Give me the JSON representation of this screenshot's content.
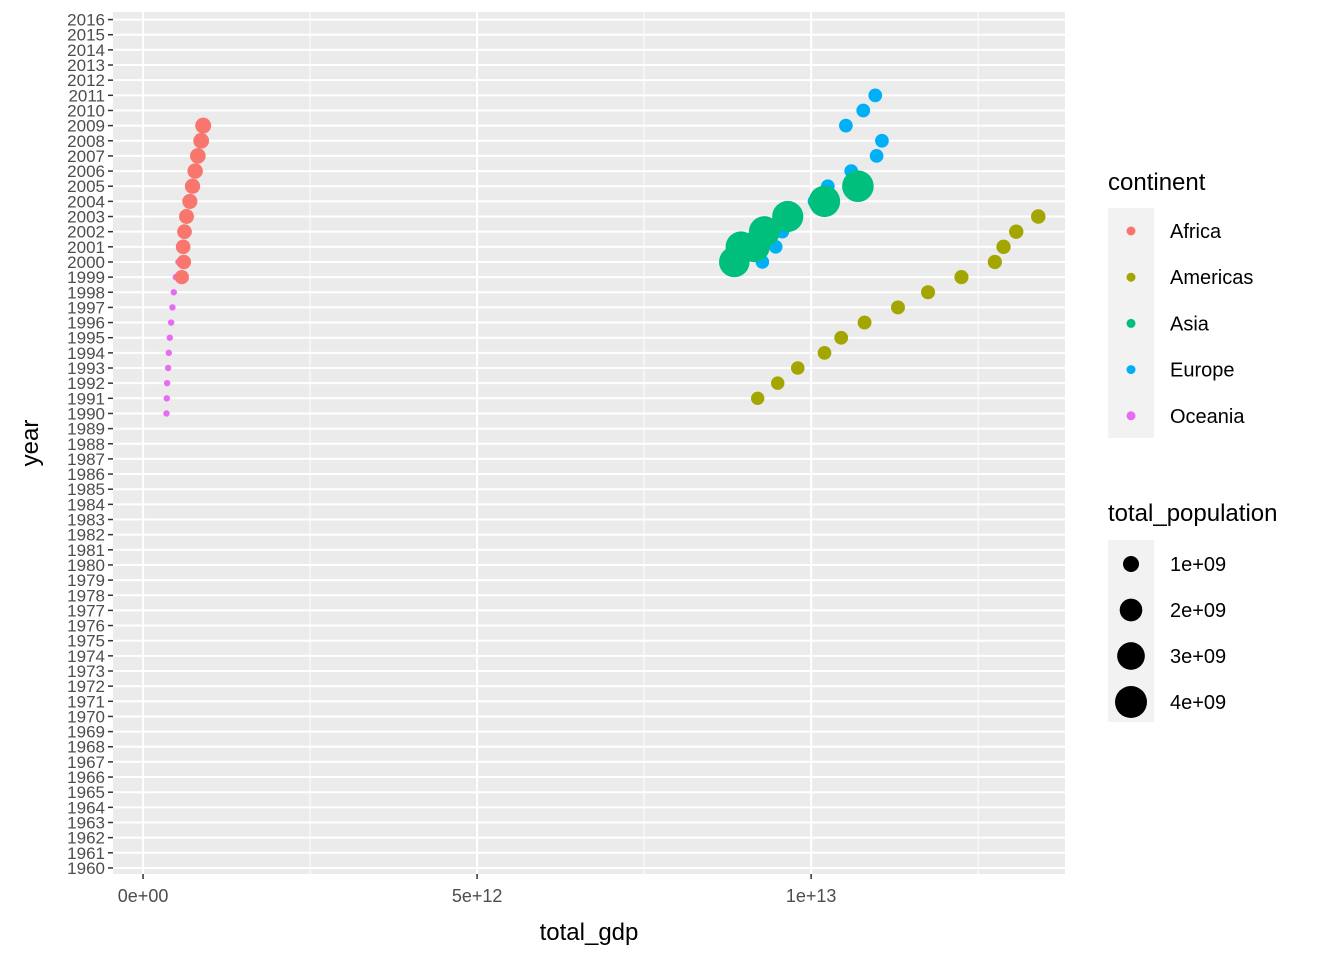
{
  "chart_data": {
    "type": "scatter",
    "xlabel": "total_gdp",
    "ylabel": "year",
    "x_tick_labels": [
      "0e+00",
      "5e+12",
      "1e+13"
    ],
    "x_ticks": [
      0,
      5000000000000,
      10000000000000
    ],
    "xlim": [
      -450000000000,
      13800000000000
    ],
    "ylim": [
      1959.6,
      2016.5
    ],
    "y_ticks": [
      1960,
      1961,
      1962,
      1963,
      1964,
      1965,
      1966,
      1967,
      1968,
      1969,
      1970,
      1971,
      1972,
      1973,
      1974,
      1975,
      1976,
      1977,
      1978,
      1979,
      1980,
      1981,
      1982,
      1983,
      1984,
      1985,
      1986,
      1987,
      1988,
      1989,
      1990,
      1991,
      1992,
      1993,
      1994,
      1995,
      1996,
      1997,
      1998,
      1999,
      2000,
      2001,
      2002,
      2003,
      2004,
      2005,
      2006,
      2007,
      2008,
      2009,
      2010,
      2011,
      2012,
      2013,
      2014,
      2015,
      2016
    ],
    "grid": true,
    "legend_position": "right",
    "color_legend": {
      "title": "continent",
      "entries": [
        {
          "name": "Africa",
          "color": "#F8766D"
        },
        {
          "name": "Americas",
          "color": "#A3A500"
        },
        {
          "name": "Asia",
          "color": "#00BF7D"
        },
        {
          "name": "Europe",
          "color": "#00B0F6"
        },
        {
          "name": "Oceania",
          "color": "#E76BF3"
        }
      ]
    },
    "size_legend": {
      "title": "total_population",
      "entries": [
        {
          "label": "1e+09",
          "value": 1000000000
        },
        {
          "label": "2e+09",
          "value": 2000000000
        },
        {
          "label": "3e+09",
          "value": 3000000000
        },
        {
          "label": "4e+09",
          "value": 4000000000
        }
      ]
    },
    "series": [
      {
        "name": "Africa",
        "points": [
          {
            "x": 580000000000,
            "y": 1999,
            "size": 800000000
          },
          {
            "x": 610000000000,
            "y": 2000,
            "size": 820000000
          },
          {
            "x": 600000000000,
            "y": 2001,
            "size": 830000000
          },
          {
            "x": 620000000000,
            "y": 2002,
            "size": 850000000
          },
          {
            "x": 650000000000,
            "y": 2003,
            "size": 870000000
          },
          {
            "x": 700000000000,
            "y": 2004,
            "size": 890000000
          },
          {
            "x": 740000000000,
            "y": 2005,
            "size": 910000000
          },
          {
            "x": 780000000000,
            "y": 2006,
            "size": 930000000
          },
          {
            "x": 820000000000,
            "y": 2007,
            "size": 950000000
          },
          {
            "x": 870000000000,
            "y": 2008,
            "size": 970000000
          },
          {
            "x": 900000000000,
            "y": 2009,
            "size": 990000000
          }
        ]
      },
      {
        "name": "Americas",
        "points": [
          {
            "x": 9200000000000,
            "y": 1991,
            "size": 700000000
          },
          {
            "x": 9500000000000,
            "y": 1992,
            "size": 710000000
          },
          {
            "x": 9800000000000,
            "y": 1993,
            "size": 720000000
          },
          {
            "x": 10200000000000,
            "y": 1994,
            "size": 730000000
          },
          {
            "x": 10450000000000,
            "y": 1995,
            "size": 740000000
          },
          {
            "x": 10800000000000,
            "y": 1996,
            "size": 750000000
          },
          {
            "x": 11300000000000,
            "y": 1997,
            "size": 760000000
          },
          {
            "x": 11750000000000,
            "y": 1998,
            "size": 770000000
          },
          {
            "x": 12250000000000,
            "y": 1999,
            "size": 780000000
          },
          {
            "x": 12750000000000,
            "y": 2000,
            "size": 790000000
          },
          {
            "x": 12880000000000,
            "y": 2001,
            "size": 800000000
          },
          {
            "x": 13070000000000,
            "y": 2002,
            "size": 810000000
          },
          {
            "x": 13400000000000,
            "y": 2003,
            "size": 820000000
          }
        ]
      },
      {
        "name": "Asia",
        "points": [
          {
            "x": 8850000000000,
            "y": 2000,
            "size": 3650000000
          },
          {
            "x": 8950000000000,
            "y": 2001,
            "size": 3700000000
          },
          {
            "x": 9150000000000,
            "y": 2001,
            "size": 3700000000
          },
          {
            "x": 9300000000000,
            "y": 2002,
            "size": 3750000000
          },
          {
            "x": 9650000000000,
            "y": 2003,
            "size": 3800000000
          },
          {
            "x": 10200000000000,
            "y": 2004,
            "size": 3850000000
          },
          {
            "x": 10700000000000,
            "y": 2005,
            "size": 3900000000
          }
        ]
      },
      {
        "name": "Europe",
        "points": [
          {
            "x": 9270000000000,
            "y": 2000,
            "size": 720000000
          },
          {
            "x": 9470000000000,
            "y": 2001,
            "size": 720000000
          },
          {
            "x": 9570000000000,
            "y": 2002,
            "size": 720000000
          },
          {
            "x": 9770000000000,
            "y": 2003,
            "size": 725000000
          },
          {
            "x": 10050000000000,
            "y": 2004,
            "size": 725000000
          },
          {
            "x": 10250000000000,
            "y": 2005,
            "size": 730000000
          },
          {
            "x": 10600000000000,
            "y": 2006,
            "size": 730000000
          },
          {
            "x": 10980000000000,
            "y": 2007,
            "size": 735000000
          },
          {
            "x": 11060000000000,
            "y": 2008,
            "size": 735000000
          },
          {
            "x": 10520000000000,
            "y": 2009,
            "size": 735000000
          },
          {
            "x": 10780000000000,
            "y": 2010,
            "size": 740000000
          },
          {
            "x": 10960000000000,
            "y": 2011,
            "size": 740000000
          }
        ]
      },
      {
        "name": "Oceania",
        "points": [
          {
            "x": 350000000000,
            "y": 1990,
            "size": 26000000
          },
          {
            "x": 355000000000,
            "y": 1991,
            "size": 26500000
          },
          {
            "x": 360000000000,
            "y": 1992,
            "size": 27000000
          },
          {
            "x": 375000000000,
            "y": 1993,
            "size": 27500000
          },
          {
            "x": 385000000000,
            "y": 1994,
            "size": 28000000
          },
          {
            "x": 400000000000,
            "y": 1995,
            "size": 28500000
          },
          {
            "x": 420000000000,
            "y": 1996,
            "size": 29000000
          },
          {
            "x": 440000000000,
            "y": 1997,
            "size": 29500000
          },
          {
            "x": 460000000000,
            "y": 1998,
            "size": 30000000
          },
          {
            "x": 490000000000,
            "y": 1999,
            "size": 30500000
          },
          {
            "x": 530000000000,
            "y": 2000,
            "size": 31000000
          }
        ]
      }
    ]
  }
}
